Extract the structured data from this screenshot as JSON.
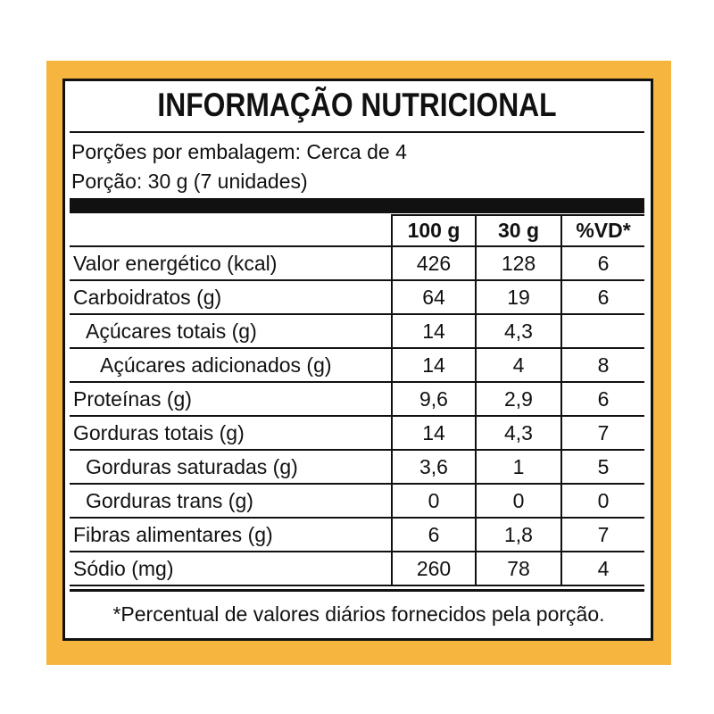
{
  "header": {
    "title": "INFORMAÇÃO NUTRICIONAL",
    "servings": "Porções por embalagem: Cerca de 4",
    "portion": "Porção: 30 g (7 unidades)"
  },
  "table": {
    "columns": [
      "100 g",
      "30 g",
      "%VD*"
    ],
    "rows": [
      [
        "Valor energético (kcal)",
        "426",
        "128",
        "6"
      ],
      [
        "Carboidratos (g)",
        "64",
        "19",
        "6"
      ],
      [
        "Açúcares totais (g)",
        "14",
        "4,3",
        null
      ],
      [
        "Açúcares adicionados (g)",
        "14",
        "4",
        "8"
      ],
      [
        "Proteínas (g)",
        "9,6",
        "2,9",
        "6"
      ],
      [
        "Gorduras totais (g)",
        "14",
        "4,3",
        "7"
      ],
      [
        "Gorduras saturadas (g)",
        "3,6",
        "1",
        "5"
      ],
      [
        "Gorduras trans (g)",
        "0",
        "0",
        "0"
      ],
      [
        "Fibras alimentares (g)",
        "6",
        "1,8",
        "7"
      ],
      [
        "Sódio (mg)",
        "260",
        "78",
        "4"
      ]
    ]
  },
  "footnote": "*Percentual de valores diários fornecidos pela porção."
}
